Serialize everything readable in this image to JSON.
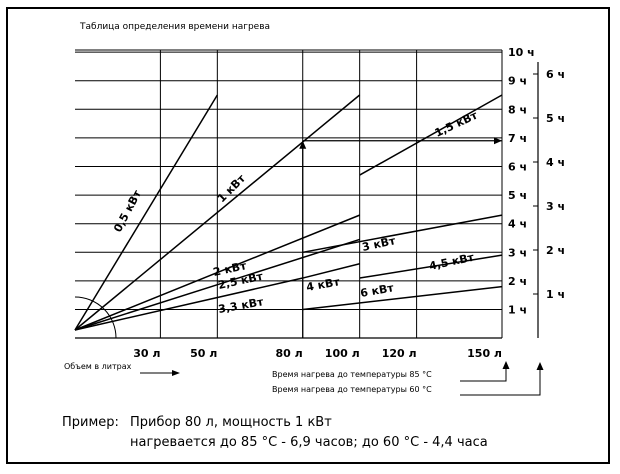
{
  "chart_data": {
    "type": "line",
    "title": "Таблица определения времени нагрева",
    "xlabel": "Объем в литрах",
    "x_tick_labels": [
      {
        "value": 30,
        "label": "30 л"
      },
      {
        "value": 50,
        "label": "50 л"
      },
      {
        "value": 80,
        "label": "80 л"
      },
      {
        "value": 100,
        "label": "100 л"
      },
      {
        "value": 120,
        "label": "120 л"
      },
      {
        "value": 150,
        "label": "150 л"
      }
    ],
    "xlim": [
      0,
      150
    ],
    "y85_tick_labels": [
      "1 ч",
      "2 ч",
      "3 ч",
      "4 ч",
      "5 ч",
      "6 ч",
      "7 ч",
      "8 ч",
      "9 ч",
      "10 ч"
    ],
    "y85_label": "Время нагрева до температуры 85 °C",
    "y85_lim": [
      0,
      10
    ],
    "y60_tick_labels": [
      "1 ч",
      "2 ч",
      "3 ч",
      "4 ч",
      "5 ч",
      "6 ч"
    ],
    "y60_label": "Время нагрева до температуры 60 °C",
    "y60_lim": [
      0,
      6
    ],
    "grid": true,
    "series": [
      {
        "name": "0,5 кВт",
        "x": [
          0,
          50
        ],
        "y": [
          0,
          8.5
        ]
      },
      {
        "name": "1 кВт",
        "x": [
          0,
          100
        ],
        "y": [
          0,
          8.5
        ]
      },
      {
        "name": "1,5 кВт",
        "x": [
          100,
          150
        ],
        "y": [
          5.7,
          8.5
        ]
      },
      {
        "name": "2 кВт",
        "x": [
          0,
          100
        ],
        "y": [
          0,
          4.3
        ]
      },
      {
        "name": "2,5 кВт",
        "x": [
          0,
          100
        ],
        "y": [
          0,
          3.45
        ]
      },
      {
        "name": "3,3 кВт",
        "x": [
          0,
          80
        ],
        "y": [
          0,
          2.1
        ]
      },
      {
        "name": "3 кВт",
        "x": [
          80,
          150
        ],
        "y": [
          3.0,
          4.3
        ]
      },
      {
        "name": "4 кВт",
        "x": [
          80,
          100
        ],
        "y": [
          2.1,
          2.6
        ]
      },
      {
        "name": "4,5 кВт",
        "x": [
          100,
          150
        ],
        "y": [
          2.1,
          2.9
        ]
      },
      {
        "name": "6 кВт",
        "x": [
          80,
          150
        ],
        "y": [
          1.0,
          1.8
        ]
      }
    ],
    "example_marker": {
      "x": 80,
      "y85": 6.9,
      "arrow_to": "7 ч"
    }
  },
  "example": {
    "prefix": "Пример:",
    "line1": "Прибор 80 л, мощность 1 кВт",
    "line2": "нагревается до 85 °C - 6,9 часов; до 60 °C - 4,4 часа"
  }
}
